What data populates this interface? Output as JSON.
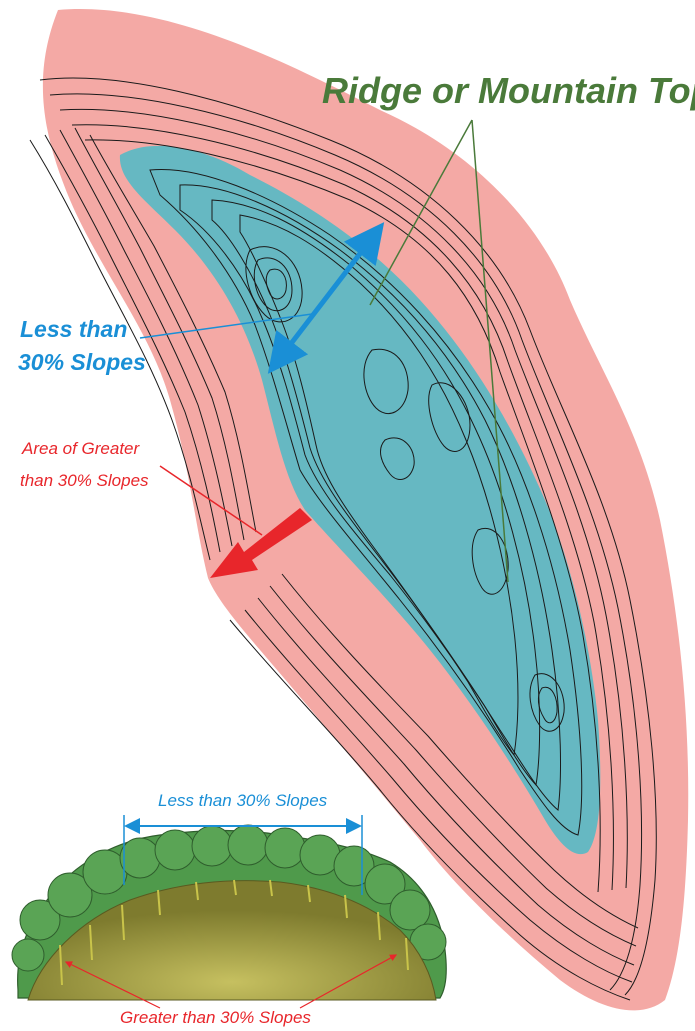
{
  "labels": {
    "ridge": "Ridge or Mountain Top",
    "less_line1": "Less than",
    "less_line2": "30% Slopes",
    "greater_line1": "Area of Greater",
    "greater_line2": "than 30% Slopes",
    "cross_less": "Less than 30% Slopes",
    "cross_greater": "Greater than 30% Slopes"
  },
  "colors": {
    "steep_zone": "#f4a9a5",
    "ridge_zone": "#66b8c2",
    "ridge_label": "#4a7a3a",
    "less_arrow": "#1a8fd6",
    "greater_arrow": "#e8262b",
    "cross_less_text": "#1a8fd6",
    "cross_greater_text": "#e8262b",
    "ground": "#8b8a3a",
    "trees": "#4f9a4b"
  },
  "icons": {
    "less_arrow": "double-headed-arrow",
    "greater_arrow": "downslope-arrow",
    "dimension": "dimension-arrow"
  }
}
